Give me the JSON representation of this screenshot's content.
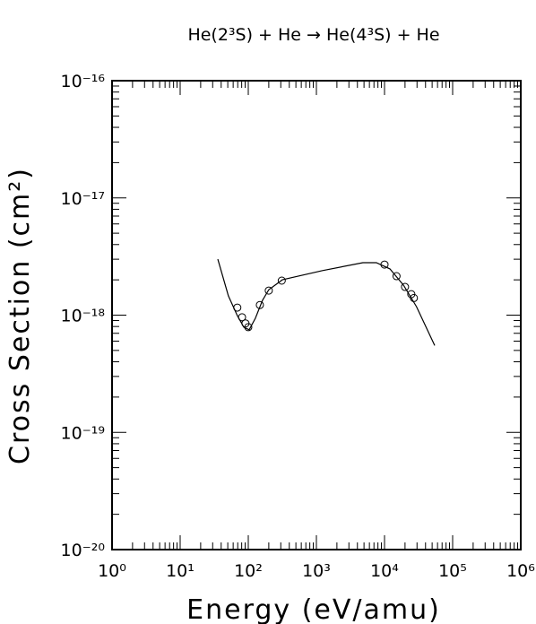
{
  "chart_data": {
    "type": "scatter",
    "title": "He(2³S) + He → He(4³S) + He",
    "x_label": "Energy (eV/amu)",
    "y_label": "Cross Section (cm²)",
    "xscale": "log",
    "yscale": "log",
    "xlim": [
      1,
      1000000
    ],
    "ylim": [
      1e-20,
      1e-16
    ],
    "xticks": [
      {
        "value": 1,
        "label": "10⁰"
      },
      {
        "value": 10,
        "label": "10¹"
      },
      {
        "value": 100,
        "label": "10²"
      },
      {
        "value": 1000,
        "label": "10³"
      },
      {
        "value": 10000,
        "label": "10⁴"
      },
      {
        "value": 100000,
        "label": "10⁵"
      },
      {
        "value": 1000000,
        "label": "10⁶"
      }
    ],
    "yticks": [
      {
        "value": 1e-20,
        "label": "10⁻²⁰"
      },
      {
        "value": 1e-19,
        "label": "10⁻¹⁹"
      },
      {
        "value": 1e-18,
        "label": "10⁻¹⁸"
      },
      {
        "value": 1e-17,
        "label": "10⁻¹⁷"
      },
      {
        "value": 1e-16,
        "label": "10⁻¹⁶"
      }
    ],
    "color": "#000000",
    "series": [
      {
        "kind": "points",
        "x": [
          69,
          81,
          91,
          100,
          148,
          200,
          310,
          10000,
          15000,
          20000,
          24700,
          27000
        ],
        "values": [
          1.16e-18,
          9.6e-19,
          8.5e-19,
          7.9e-19,
          1.22e-18,
          1.62e-18,
          1.97e-18,
          2.7e-18,
          2.15e-18,
          1.74e-18,
          1.51e-18,
          1.4e-18
        ]
      },
      {
        "kind": "line",
        "x": [
          35.7,
          51,
          69,
          86,
          103,
          127,
          162,
          200,
          316,
          1230,
          4800,
          7600,
          12000,
          19000,
          29500,
          54500
        ],
        "values": [
          3e-18,
          1.46e-18,
          9.9e-19,
          7.9e-19,
          7.5e-19,
          9.4e-19,
          1.34e-18,
          1.65e-18,
          2e-18,
          2.4e-18,
          2.8e-18,
          2.8e-18,
          2.48e-18,
          1.8e-18,
          1.18e-18,
          5.5e-19
        ]
      }
    ]
  }
}
